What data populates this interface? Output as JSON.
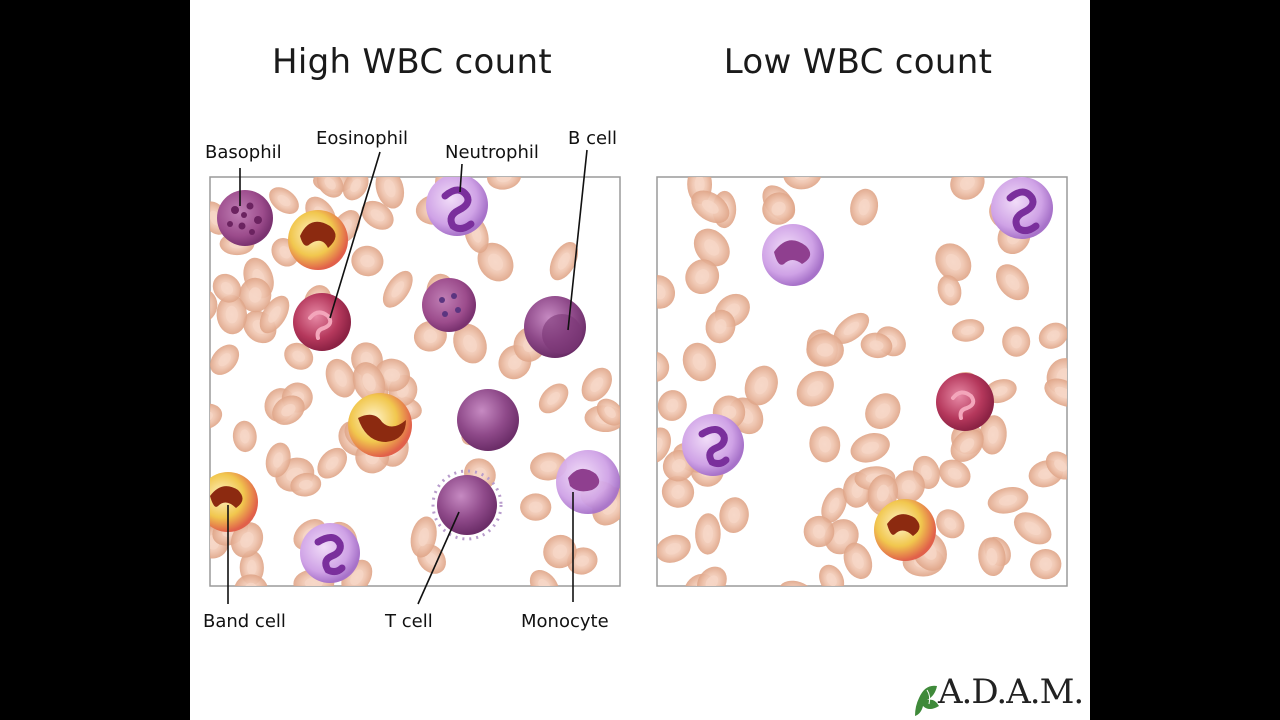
{
  "panels": {
    "high": {
      "title": "High WBC count"
    },
    "low": {
      "title": "Low WBC count"
    }
  },
  "labels": {
    "basophil": "Basophil",
    "eosinophil": "Eosinophil",
    "neutrophil": "Neutrophil",
    "b_cell": "B cell",
    "band_cell": "Band cell",
    "t_cell": "T cell",
    "monocyte": "Monocyte"
  },
  "logo": {
    "text": "A.D.A.M."
  },
  "colors": {
    "background": "#000000",
    "slide": "#ffffff",
    "red_cell": "#e8b39a",
    "neutrophil": "#c99ee0",
    "eosinophil": "#b5385c",
    "basophil": "#9c4c8c",
    "lymphocyte": "#8f4a8a",
    "band_cell": "#e9c34a"
  },
  "icons": {
    "logo_mark": "leaf-icon"
  }
}
